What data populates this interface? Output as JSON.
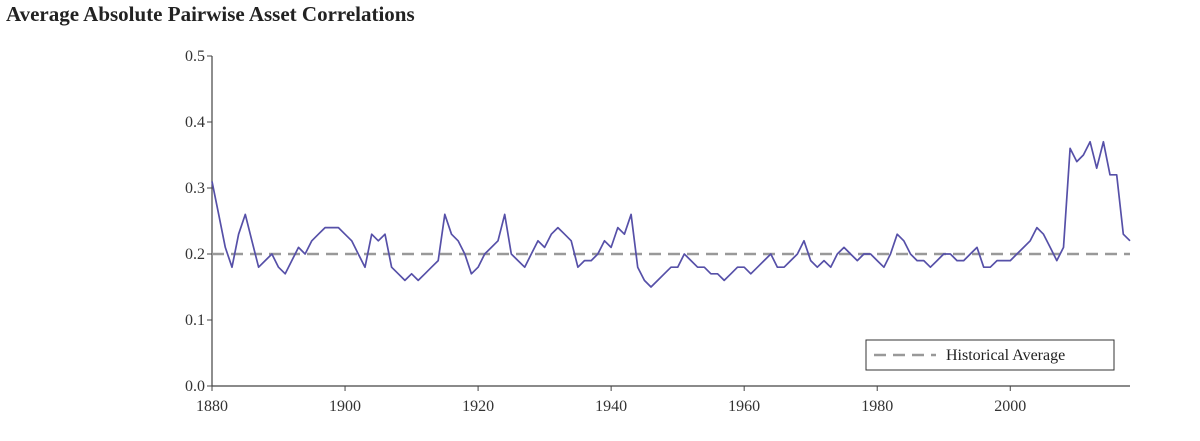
{
  "chart_data": {
    "type": "line",
    "title": "Average Absolute Pairwise Asset Correlations",
    "xlabel": "",
    "ylabel": "",
    "xlim": [
      1880,
      2018
    ],
    "ylim": [
      0,
      0.5
    ],
    "x_ticks": [
      1880,
      1900,
      1920,
      1940,
      1960,
      1980,
      2000
    ],
    "x_tick_labels": [
      "1880",
      "1900",
      "1920",
      "1940",
      "1960",
      "1980",
      "2000"
    ],
    "y_ticks": [
      0,
      0.1,
      0.2,
      0.3,
      0.4,
      0.5
    ],
    "y_tick_labels": [
      "0.0",
      "0.1",
      "0.2",
      "0.3",
      "0.4",
      "0.5"
    ],
    "grid": false,
    "legend_position": "bottom-right",
    "series": [
      {
        "color": "#5650a8",
        "x": [
          1880,
          1881,
          1882,
          1883,
          1884,
          1885,
          1886,
          1887,
          1888,
          1889,
          1890,
          1891,
          1892,
          1893,
          1894,
          1895,
          1896,
          1897,
          1898,
          1899,
          1900,
          1901,
          1902,
          1903,
          1904,
          1905,
          1906,
          1907,
          1908,
          1909,
          1910,
          1911,
          1912,
          1913,
          1914,
          1915,
          1916,
          1917,
          1918,
          1919,
          1920,
          1921,
          1922,
          1923,
          1924,
          1925,
          1926,
          1927,
          1928,
          1929,
          1930,
          1931,
          1932,
          1933,
          1934,
          1935,
          1936,
          1937,
          1938,
          1939,
          1940,
          1941,
          1942,
          1943,
          1944,
          1945,
          1946,
          1947,
          1948,
          1949,
          1950,
          1951,
          1952,
          1953,
          1954,
          1955,
          1956,
          1957,
          1958,
          1959,
          1960,
          1961,
          1962,
          1963,
          1964,
          1965,
          1966,
          1967,
          1968,
          1969,
          1970,
          1971,
          1972,
          1973,
          1974,
          1975,
          1976,
          1977,
          1978,
          1979,
          1980,
          1981,
          1982,
          1983,
          1984,
          1985,
          1986,
          1987,
          1988,
          1989,
          1990,
          1991,
          1992,
          1993,
          1994,
          1995,
          1996,
          1997,
          1998,
          1999,
          2000,
          2001,
          2002,
          2003,
          2004,
          2005,
          2006,
          2007,
          2008,
          2009,
          2010,
          2011,
          2012,
          2013,
          2014,
          2015,
          2016,
          2017,
          2018
        ],
        "values": [
          0.31,
          0.26,
          0.21,
          0.18,
          0.23,
          0.26,
          0.22,
          0.18,
          0.19,
          0.2,
          0.18,
          0.17,
          0.19,
          0.21,
          0.2,
          0.22,
          0.23,
          0.24,
          0.24,
          0.24,
          0.23,
          0.22,
          0.2,
          0.18,
          0.23,
          0.22,
          0.23,
          0.18,
          0.17,
          0.16,
          0.17,
          0.16,
          0.17,
          0.18,
          0.19,
          0.26,
          0.23,
          0.22,
          0.2,
          0.17,
          0.18,
          0.2,
          0.21,
          0.22,
          0.26,
          0.2,
          0.19,
          0.18,
          0.2,
          0.22,
          0.21,
          0.23,
          0.24,
          0.23,
          0.22,
          0.18,
          0.19,
          0.19,
          0.2,
          0.22,
          0.21,
          0.24,
          0.23,
          0.26,
          0.18,
          0.16,
          0.15,
          0.16,
          0.17,
          0.18,
          0.18,
          0.2,
          0.19,
          0.18,
          0.18,
          0.17,
          0.17,
          0.16,
          0.17,
          0.18,
          0.18,
          0.17,
          0.18,
          0.19,
          0.2,
          0.18,
          0.18,
          0.19,
          0.2,
          0.22,
          0.19,
          0.18,
          0.19,
          0.18,
          0.2,
          0.21,
          0.2,
          0.19,
          0.2,
          0.2,
          0.19,
          0.18,
          0.2,
          0.23,
          0.22,
          0.2,
          0.19,
          0.19,
          0.18,
          0.19,
          0.2,
          0.2,
          0.19,
          0.19,
          0.2,
          0.21,
          0.18,
          0.18,
          0.19,
          0.19,
          0.19,
          0.2,
          0.21,
          0.22,
          0.24,
          0.23,
          0.21,
          0.19,
          0.21,
          0.36,
          0.34,
          0.35,
          0.37,
          0.33,
          0.37,
          0.32,
          0.32,
          0.23,
          0.22
        ]
      },
      {
        "name": "Historical Average",
        "color": "#999999",
        "style": "dashed",
        "x": [
          1880,
          2018
        ],
        "values": [
          0.2,
          0.2
        ]
      }
    ]
  }
}
